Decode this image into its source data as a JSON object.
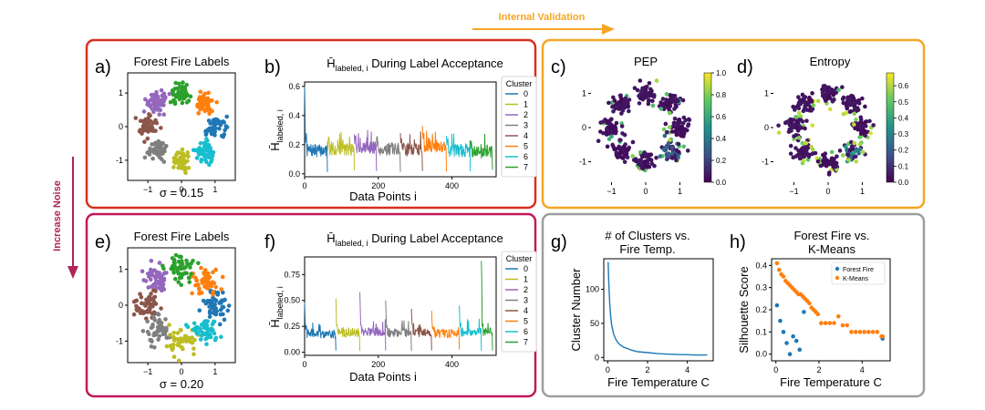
{
  "figure": {
    "top_arrow_label": "Internal Validation",
    "side_arrow_label": "Increase Noise",
    "colors": {
      "red_box": "#d7301f",
      "crimson_box": "#c2185b",
      "orange_box": "#f5a623",
      "grey_box": "#9e9e9e",
      "arrow_orange": "#f5a623",
      "arrow_crimson": "#b0245a"
    }
  },
  "cluster_palette": [
    "#1f77b4",
    "#bcbd22",
    "#9467bd",
    "#7f7f7f",
    "#8c564b",
    "#ff7f0e",
    "#17becf",
    "#2ca02c"
  ],
  "chart_data": [
    {
      "id": "a",
      "panel_label": "a)",
      "type": "scatter",
      "title": "Forest Fire Labels",
      "subtitle": "σ = 0.15",
      "xlim": [
        -1.6,
        1.6
      ],
      "ylim": [
        -1.6,
        1.6
      ],
      "xticks": [
        -1,
        0,
        1
      ],
      "yticks": [
        -1,
        0,
        1
      ],
      "noise": 0.15,
      "cluster_centers": [
        [
          1,
          0
        ],
        [
          0.707,
          0.707
        ],
        [
          0,
          1
        ],
        [
          -0.707,
          0.707
        ],
        [
          -1,
          0
        ],
        [
          -0.707,
          -0.707
        ],
        [
          0,
          -1
        ],
        [
          0.707,
          -0.707
        ]
      ],
      "cluster_colors": [
        "#1f77b4",
        "#ff7f0e",
        "#2ca02c",
        "#9467bd",
        "#8c564b",
        "#7f7f7f",
        "#bcbd22",
        "#17becf"
      ]
    },
    {
      "id": "b",
      "panel_label": "b)",
      "type": "line",
      "title": "H̄labeled, i During Label Acceptance",
      "title_main": "H̄",
      "title_sub": "labeled, i",
      "title_rest": " During Label Acceptance",
      "xlabel": "Data Points i",
      "ylabel_main": "H̄",
      "ylabel_sub": "labeled, i",
      "xlim": [
        0,
        520
      ],
      "ylim": [
        -0.02,
        0.63
      ],
      "xticks": [
        0,
        200,
        400
      ],
      "yticks": [
        0.0,
        0.2,
        0.4,
        0.6
      ],
      "ytick_labels": [
        "0.0",
        "0.2",
        "0.4",
        "0.6"
      ],
      "legend_title": "Cluster",
      "legend_items": [
        "0",
        "1",
        "2",
        "3",
        "4",
        "5",
        "6",
        "7"
      ],
      "segments": [
        {
          "cluster": 0,
          "x_start": 0,
          "x_end": 62,
          "base": 0.16,
          "spike": 0.6
        },
        {
          "cluster": 1,
          "x_start": 62,
          "x_end": 135,
          "base": 0.17,
          "spike": 0.22
        },
        {
          "cluster": 2,
          "x_start": 135,
          "x_end": 195,
          "base": 0.18,
          "spike": 0.27
        },
        {
          "cluster": 3,
          "x_start": 195,
          "x_end": 260,
          "base": 0.17,
          "spike": 0.25
        },
        {
          "cluster": 4,
          "x_start": 260,
          "x_end": 320,
          "base": 0.17,
          "spike": 0.28
        },
        {
          "cluster": 5,
          "x_start": 320,
          "x_end": 385,
          "base": 0.19,
          "spike": 0.33
        },
        {
          "cluster": 6,
          "x_start": 385,
          "x_end": 450,
          "base": 0.16,
          "spike": 0.26
        },
        {
          "cluster": 7,
          "x_start": 450,
          "x_end": 510,
          "base": 0.15,
          "spike": 0.23
        }
      ]
    },
    {
      "id": "c",
      "panel_label": "c)",
      "type": "scatter",
      "title": "PEP",
      "xlim": [
        -1.6,
        1.6
      ],
      "ylim": [
        -1.6,
        1.6
      ],
      "xticks": [
        -1,
        0,
        1
      ],
      "yticks": [
        -1,
        0,
        1
      ],
      "noise": 0.15,
      "colorbar": {
        "ticks": [
          0.0,
          0.2,
          0.4,
          0.6,
          0.8,
          1.0
        ],
        "labels": [
          "0.0",
          "0.2",
          "0.4",
          "0.6",
          "0.8",
          "1.0"
        ],
        "max": 1.0
      }
    },
    {
      "id": "d",
      "panel_label": "d)",
      "type": "scatter",
      "title": "Entropy",
      "xlim": [
        -1.6,
        1.6
      ],
      "ylim": [
        -1.6,
        1.6
      ],
      "xticks": [
        -1,
        0,
        1
      ],
      "yticks": [
        -1,
        0,
        1
      ],
      "noise": 0.15,
      "colorbar": {
        "ticks": [
          0.0,
          0.1,
          0.2,
          0.3,
          0.4,
          0.5,
          0.6
        ],
        "labels": [
          "0.0",
          "0.1",
          "0.2",
          "0.3",
          "0.4",
          "0.5",
          "0.6"
        ],
        "max": 0.68
      }
    },
    {
      "id": "e",
      "panel_label": "e)",
      "type": "scatter",
      "title": "Forest Fire Labels",
      "subtitle": "σ = 0.20",
      "xlim": [
        -1.6,
        1.6
      ],
      "ylim": [
        -1.6,
        1.6
      ],
      "xticks": [
        -1,
        0,
        1
      ],
      "yticks": [
        -1,
        0,
        1
      ],
      "noise": 0.2,
      "cluster_centers": [
        [
          1,
          0
        ],
        [
          0.707,
          0.707
        ],
        [
          0,
          1
        ],
        [
          -0.707,
          0.707
        ],
        [
          -1,
          0
        ],
        [
          -0.707,
          -0.707
        ],
        [
          0,
          -1
        ],
        [
          0.707,
          -0.707
        ]
      ],
      "cluster_colors": [
        "#1f77b4",
        "#ff7f0e",
        "#2ca02c",
        "#9467bd",
        "#8c564b",
        "#7f7f7f",
        "#bcbd22",
        "#17becf"
      ]
    },
    {
      "id": "f",
      "panel_label": "f)",
      "type": "line",
      "title": "H̄labeled, i During Label Acceptance",
      "title_main": "H̄",
      "title_sub": "labeled, i",
      "title_rest": " During Label Acceptance",
      "xlabel": "Data Points i",
      "ylabel_main": "H̄",
      "ylabel_sub": "labeled, i",
      "xlim": [
        0,
        520
      ],
      "ylim": [
        -0.03,
        0.92
      ],
      "xticks": [
        0,
        200,
        400
      ],
      "yticks": [
        0.0,
        0.25,
        0.5,
        0.75
      ],
      "ytick_labels": [
        "0.00",
        "0.25",
        "0.50",
        "0.75"
      ],
      "legend_title": "Cluster",
      "legend_items": [
        "0",
        "1",
        "2",
        "3",
        "4",
        "5",
        "6",
        "7"
      ],
      "segments": [
        {
          "cluster": 0,
          "x_start": 0,
          "x_end": 85,
          "base": 0.18,
          "spike": 0.48
        },
        {
          "cluster": 1,
          "x_start": 85,
          "x_end": 150,
          "base": 0.19,
          "spike": 0.52
        },
        {
          "cluster": 2,
          "x_start": 150,
          "x_end": 220,
          "base": 0.2,
          "spike": 0.58
        },
        {
          "cluster": 3,
          "x_start": 220,
          "x_end": 290,
          "base": 0.19,
          "spike": 0.5
        },
        {
          "cluster": 4,
          "x_start": 290,
          "x_end": 345,
          "base": 0.19,
          "spike": 0.42
        },
        {
          "cluster": 5,
          "x_start": 345,
          "x_end": 420,
          "base": 0.18,
          "spike": 0.4
        },
        {
          "cluster": 6,
          "x_start": 420,
          "x_end": 480,
          "base": 0.2,
          "spike": 0.45
        },
        {
          "cluster": 7,
          "x_start": 480,
          "x_end": 510,
          "base": 0.2,
          "spike": 0.88
        }
      ]
    },
    {
      "id": "g",
      "panel_label": "g)",
      "type": "line",
      "title_lines": [
        "# of Clusters vs.",
        "Fire Temp."
      ],
      "xlabel": "Fire Temperature C",
      "ylabel": "Cluster Number",
      "xlim": [
        -0.2,
        5.3
      ],
      "ylim": [
        -5,
        145
      ],
      "xticks": [
        0,
        2,
        4
      ],
      "yticks": [
        0,
        50,
        100
      ],
      "color": "#1f77b4",
      "x": [
        0.02,
        0.05,
        0.1,
        0.15,
        0.2,
        0.3,
        0.4,
        0.5,
        0.6,
        0.8,
        1.0,
        1.2,
        1.5,
        2.0,
        2.5,
        3.0,
        3.5,
        4.0,
        4.5,
        5.0
      ],
      "y": [
        140,
        110,
        80,
        60,
        47,
        34,
        27,
        22,
        19,
        15,
        13,
        11,
        9,
        7,
        6,
        5,
        5,
        4,
        4,
        3
      ]
    },
    {
      "id": "h",
      "panel_label": "h)",
      "type": "scatter",
      "title_lines": [
        "Forest Fire vs.",
        "K-Means"
      ],
      "xlabel": "Fire Temperature C",
      "ylabel": "Silhouette Score",
      "xlim": [
        -0.2,
        5.3
      ],
      "ylim": [
        -0.03,
        0.43
      ],
      "xticks": [
        0,
        2,
        4
      ],
      "yticks": [
        0.0,
        0.1,
        0.2,
        0.3,
        0.4
      ],
      "ytick_labels": [
        "0.0",
        "0.1",
        "0.2",
        "0.3",
        "0.4"
      ],
      "legend_items": [
        "Forest Fire",
        "K-Means"
      ],
      "series": [
        {
          "name": "Forest Fire",
          "color": "#1f77b4",
          "x": [
            0.05,
            0.2,
            0.35,
            0.5,
            0.65,
            0.8,
            0.95,
            1.1,
            1.3,
            4.95
          ],
          "y": [
            0.22,
            0.15,
            0.1,
            0.05,
            0.0,
            0.08,
            0.06,
            0.02,
            0.19,
            0.07
          ]
        },
        {
          "name": "K-Means",
          "color": "#ff7f0e",
          "x": [
            0.05,
            0.15,
            0.25,
            0.35,
            0.45,
            0.55,
            0.65,
            0.75,
            0.85,
            0.95,
            1.05,
            1.15,
            1.25,
            1.35,
            1.45,
            1.55,
            1.65,
            1.75,
            1.85,
            1.95,
            2.1,
            2.3,
            2.5,
            2.7,
            2.9,
            3.1,
            3.3,
            3.5,
            3.7,
            3.9,
            4.1,
            4.3,
            4.5,
            4.7,
            4.9,
            4.95
          ],
          "y": [
            0.41,
            0.38,
            0.36,
            0.35,
            0.33,
            0.32,
            0.31,
            0.3,
            0.29,
            0.28,
            0.27,
            0.27,
            0.26,
            0.25,
            0.24,
            0.23,
            0.21,
            0.2,
            0.19,
            0.18,
            0.14,
            0.14,
            0.14,
            0.14,
            0.17,
            0.13,
            0.13,
            0.1,
            0.1,
            0.1,
            0.1,
            0.1,
            0.1,
            0.1,
            0.08,
            0.08
          ]
        }
      ]
    }
  ]
}
